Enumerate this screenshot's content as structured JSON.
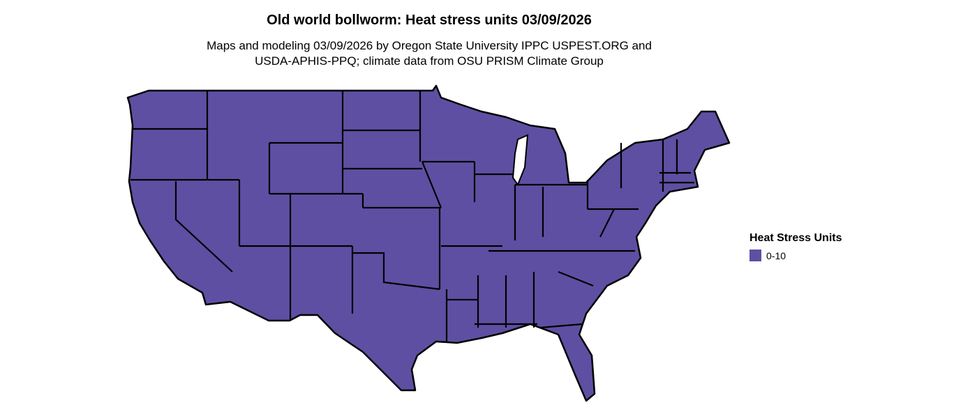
{
  "title": "Old world bollworm: Heat stress units 03/09/2026",
  "subtitle_line1": "Maps and modeling 03/09/2026 by Oregon State University IPPC USPEST.ORG and",
  "subtitle_line2": "USDA-APHIS-PPQ; climate data from OSU PRISM Climate Group",
  "legend": {
    "title": "Heat Stress Units",
    "items": [
      {
        "label": "0-10",
        "color": "#5E4FA2"
      }
    ]
  },
  "map": {
    "region": "contiguous United States",
    "fill_color": "#5E4FA2",
    "border_color": "#000000"
  }
}
